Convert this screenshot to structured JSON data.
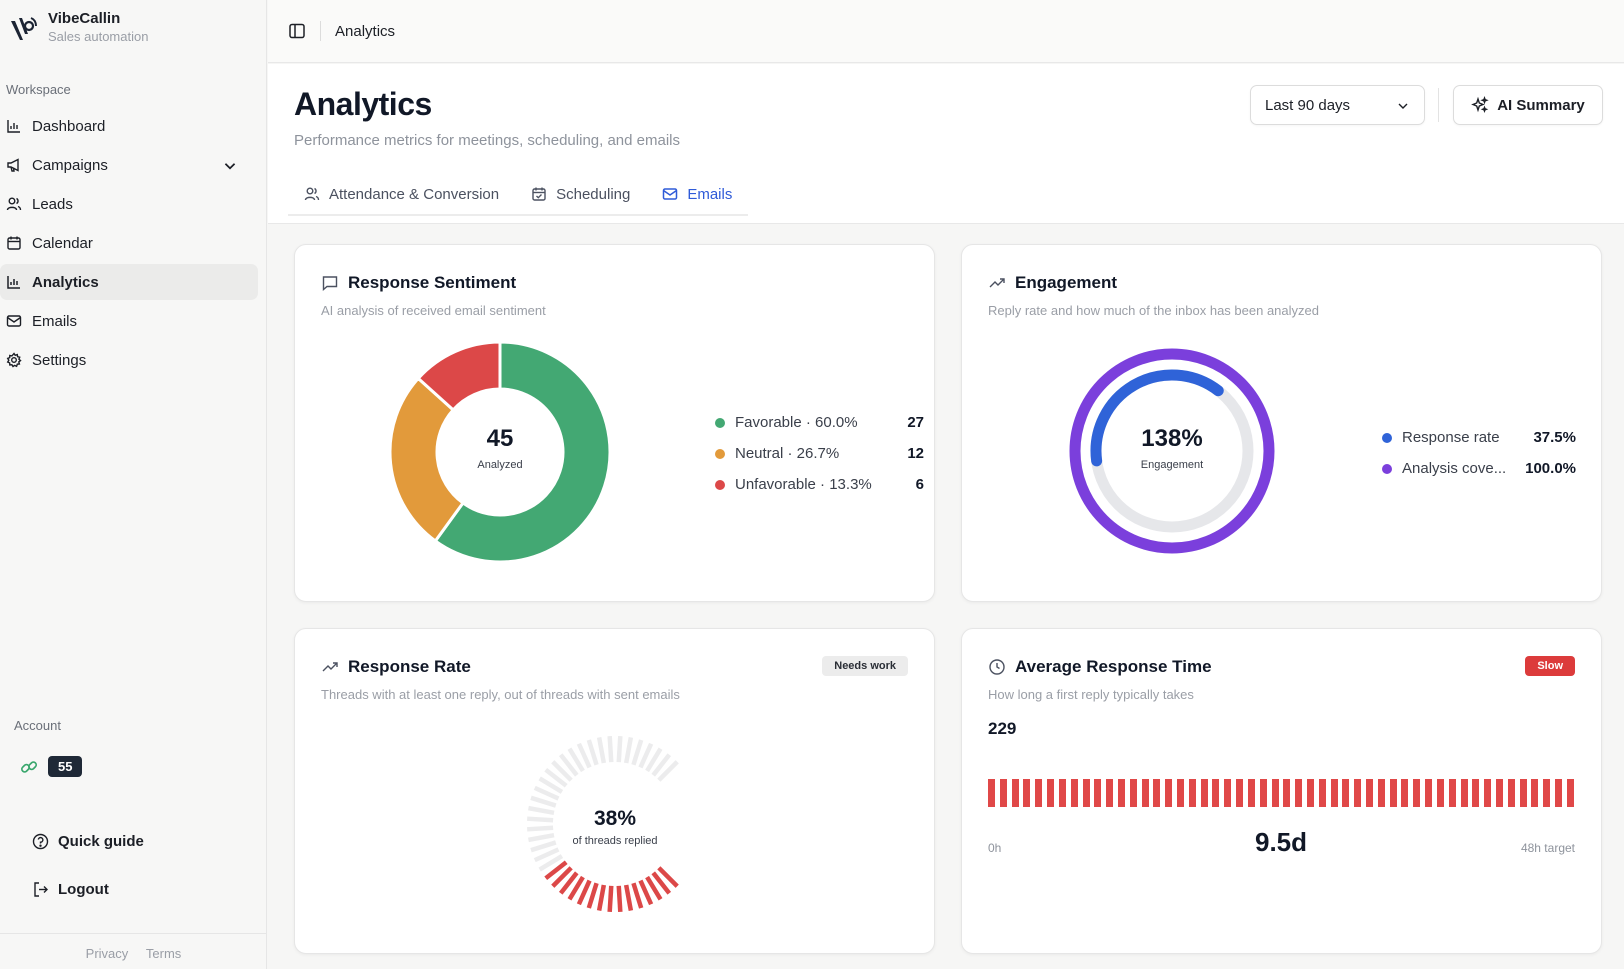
{
  "app": {
    "name": "VibeCallin",
    "tagline": "Sales automation"
  },
  "sidebar": {
    "workspace_label": "Workspace",
    "items": [
      {
        "label": "Dashboard",
        "icon": "bar-chart-icon"
      },
      {
        "label": "Campaigns",
        "icon": "megaphone-icon"
      },
      {
        "label": "Leads",
        "icon": "users-icon"
      },
      {
        "label": "Calendar",
        "icon": "calendar-icon"
      },
      {
        "label": "Analytics",
        "icon": "bar-chart-icon",
        "active": true
      },
      {
        "label": "Emails",
        "icon": "mail-icon"
      },
      {
        "label": "Settings",
        "icon": "gear-icon"
      }
    ],
    "account_label": "Account",
    "account_badge": "55",
    "quick_guide": "Quick guide",
    "logout": "Logout",
    "footer": {
      "privacy": "Privacy",
      "terms": "Terms"
    }
  },
  "topbar": {
    "title": "Analytics"
  },
  "header": {
    "title": "Analytics",
    "subtitle": "Performance metrics for meetings, scheduling, and emails",
    "range": "Last 90 days",
    "ai_button": "AI Summary",
    "tabs": [
      {
        "label": "Attendance & Conversion",
        "icon": "users-icon"
      },
      {
        "label": "Scheduling",
        "icon": "calendar-check-icon"
      },
      {
        "label": "Emails",
        "icon": "mail-icon",
        "active": true
      }
    ]
  },
  "colors": {
    "favorable": "#43a873",
    "neutral": "#e29a3b",
    "unfavorable": "#dc4848",
    "response_rate": "#2f63d8",
    "analysis": "#7b3fdc",
    "track": "#e6e7ea",
    "accent": "#2f5bd8"
  },
  "sentiment": {
    "title": "Response Sentiment",
    "subtitle": "AI analysis of received email sentiment",
    "total": "45",
    "total_label": "Analyzed",
    "legend": [
      {
        "label": "Favorable · 60.0%",
        "value": "27"
      },
      {
        "label": "Neutral · 26.7%",
        "value": "12"
      },
      {
        "label": "Unfavorable · 13.3%",
        "value": "6"
      }
    ]
  },
  "engagement": {
    "title": "Engagement",
    "subtitle": "Reply rate and how much of the inbox has been analyzed",
    "center_value": "138%",
    "center_label": "Engagement",
    "legend": [
      {
        "label": "Response rate",
        "value": "37.5%"
      },
      {
        "label": "Analysis cove...",
        "value": "100.0%"
      }
    ]
  },
  "response_rate": {
    "title": "Response Rate",
    "subtitle": "Threads with at least one reply, out of threads with sent emails",
    "badge": "Needs work",
    "value": "38%",
    "value_label": "of threads replied"
  },
  "avg_response": {
    "title": "Average Response Time",
    "subtitle": "How long a first reply typically takes",
    "badge": "Slow",
    "count": "229",
    "value": "9.5d",
    "min_label": "0h",
    "target_label": "48h target"
  },
  "chart_data": [
    {
      "type": "pie",
      "categories": [
        "Favorable",
        "Neutral",
        "Unfavorable"
      ],
      "values": [
        27,
        12,
        6
      ]
    },
    {
      "type": "pie",
      "categories": [
        "Response rate",
        "Analysis coverage"
      ],
      "values": [
        37.5,
        100.0
      ]
    },
    {
      "type": "bar",
      "categories": [
        "Response rate"
      ],
      "values": [
        38
      ],
      "ylim": [
        0,
        100
      ]
    }
  ]
}
